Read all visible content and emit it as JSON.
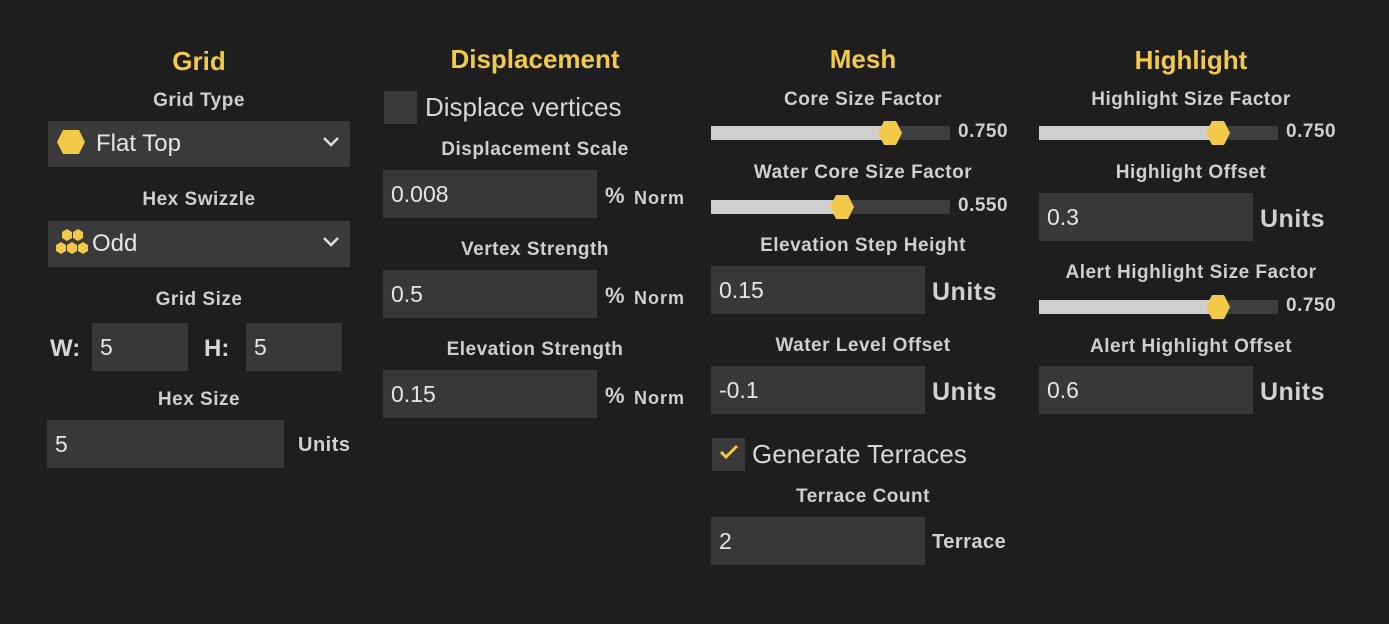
{
  "colors": {
    "accent": "#f3c94a",
    "background": "#1e1e1e",
    "field": "#383838"
  },
  "grid": {
    "title": "Grid",
    "grid_type_label": "Grid Type",
    "grid_type_value": "Flat Top",
    "grid_type_icon": "hexagon-flat-top-icon",
    "hex_swizzle_label": "Hex Swizzle",
    "hex_swizzle_value": "Odd",
    "hex_swizzle_icon": "hex-cluster-icon",
    "grid_size_label": "Grid Size",
    "w_label": "W:",
    "w_value": "5",
    "h_label": "H:",
    "h_value": "5",
    "hex_size_label": "Hex Size",
    "hex_size_value": "5",
    "hex_size_unit": "Units"
  },
  "displacement": {
    "title": "Displacement",
    "displace_vertices_label": "Displace vertices",
    "displace_vertices_checked": false,
    "scale_label": "Displacement Scale",
    "scale_value": "0.008",
    "vertex_strength_label": "Vertex Strength",
    "vertex_strength_value": "0.5",
    "elevation_strength_label": "Elevation Strength",
    "elevation_strength_value": "0.15",
    "pct": "%",
    "norm": "Norm"
  },
  "mesh": {
    "title": "Mesh",
    "core_size_label": "Core Size Factor",
    "core_size_value": "0.750",
    "core_size_fraction": 0.75,
    "water_core_label": "Water Core Size Factor",
    "water_core_value": "0.550",
    "water_core_fraction": 0.55,
    "elev_step_label": "Elevation Step Height",
    "elev_step_value": "0.15",
    "water_level_label": "Water Level Offset",
    "water_level_value": "-0.1",
    "units": "Units",
    "terraces_label": "Generate Terraces",
    "terraces_checked": true,
    "terrace_count_label": "Terrace Count",
    "terrace_count_value": "2",
    "terrace_unit": "Terrace"
  },
  "highlight": {
    "title": "Highlight",
    "size_label": "Highlight Size Factor",
    "size_value": "0.750",
    "size_fraction": 0.75,
    "offset_label": "Highlight Offset",
    "offset_value": "0.3",
    "alert_size_label": "Alert Highlight Size Factor",
    "alert_size_value": "0.750",
    "alert_size_fraction": 0.75,
    "alert_offset_label": "Alert Highlight Offset",
    "alert_offset_value": "0.6",
    "units": "Units"
  }
}
